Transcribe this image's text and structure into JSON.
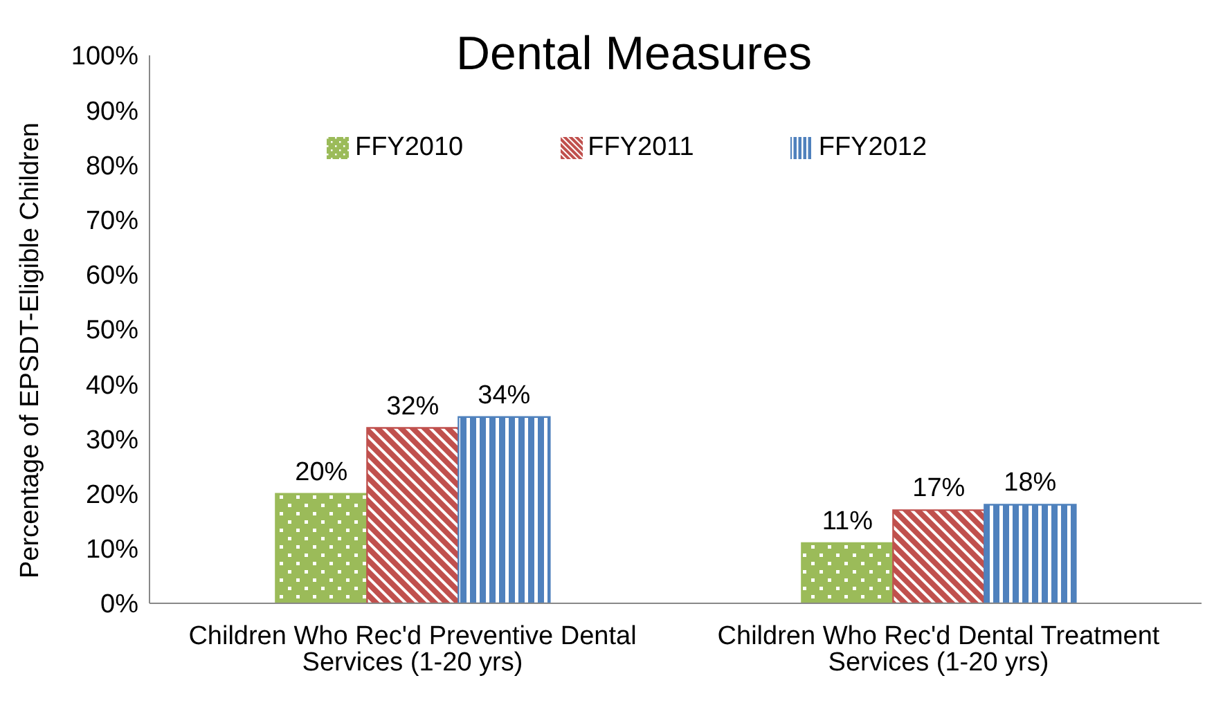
{
  "chart_data": {
    "type": "bar",
    "title": "Dental Measures",
    "ylabel": "Percentage of EPSDT-Eligible Children",
    "categories": [
      "Children Who Rec'd Preventive Dental Services (1-20 yrs)",
      "Children Who Rec'd Dental Treatment Services (1-20 yrs)"
    ],
    "series": [
      {
        "name": "FFY2010",
        "color": "#9bbb59",
        "values": [
          20,
          11
        ],
        "value_labels": [
          "20%",
          "11%"
        ]
      },
      {
        "name": "FFY2011",
        "color": "#c0504d",
        "values": [
          32,
          17
        ],
        "value_labels": [
          "32%",
          "17%"
        ]
      },
      {
        "name": "FFY2012",
        "color": "#4f81bd",
        "values": [
          34,
          18
        ],
        "value_labels": [
          "34%",
          "18%"
        ]
      }
    ],
    "ylim": [
      0,
      100
    ],
    "yticks": [
      {
        "value": 0,
        "label": "0%"
      },
      {
        "value": 10,
        "label": "10%"
      },
      {
        "value": 20,
        "label": "20%"
      },
      {
        "value": 30,
        "label": "30%"
      },
      {
        "value": 40,
        "label": "40%"
      },
      {
        "value": 50,
        "label": "50%"
      },
      {
        "value": 60,
        "label": "60%"
      },
      {
        "value": 70,
        "label": "70%"
      },
      {
        "value": 80,
        "label": "80%"
      },
      {
        "value": 90,
        "label": "90%"
      },
      {
        "value": 100,
        "label": "100%"
      }
    ],
    "grid": false,
    "legend": "top"
  }
}
